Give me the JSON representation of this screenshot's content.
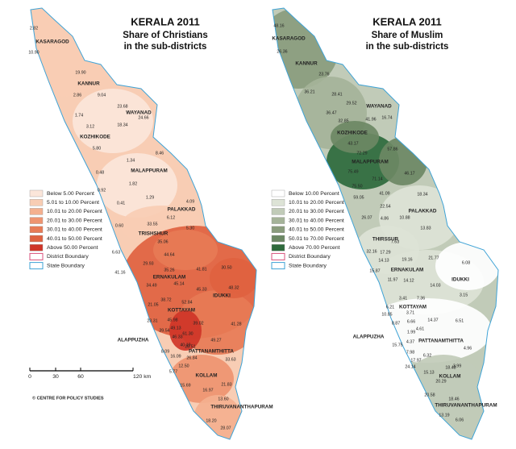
{
  "maps": [
    {
      "title": "KERALA 2011",
      "subtitle_lines": [
        "Share of Christians",
        "in the sub-districts"
      ],
      "legend": [
        {
          "label": "Below 5.00 Percent",
          "color": "#fbe6da"
        },
        {
          "label": "5.01 to 10.00 Percent",
          "color": "#f8cdb4"
        },
        {
          "label": "10.01 to 20.00 Percent",
          "color": "#f4b08f"
        },
        {
          "label": "20.01 to 30.00 Percent",
          "color": "#ee9470"
        },
        {
          "label": "30.01 to 40.00 Percent",
          "color": "#e77b56"
        },
        {
          "label": "40.01 to 50.00 Percent",
          "color": "#df6240"
        },
        {
          "label": "Above 50.00 Percent",
          "color": "#cf3528"
        }
      ],
      "boundaries": [
        {
          "label": "District Boundary",
          "color": "#d8507c"
        },
        {
          "label": "State Boundary",
          "color": "#3fa3d6"
        }
      ],
      "districts": [
        "KASARAGOD",
        "KANNUR",
        "WAYANAD",
        "KOZHIKODE",
        "MALAPPURAM",
        "PALAKKAD",
        "TRISHSHUR",
        "ERNAKULAM",
        "IDUKKI",
        "KOTTAYAM",
        "ALAPPUZHA",
        "PATTANAMTHITTA",
        "KOLLAM",
        "THIRUVANANTHAPURAM"
      ],
      "values": [
        "2.82",
        "10.90",
        "19.90",
        "2.86",
        "9.04",
        "23.68",
        "24.66",
        "1.74",
        "3.12",
        "18.34",
        "5.80",
        "8.46",
        "1.34",
        "0.48",
        "1.82",
        "0.92",
        "1.29",
        "4.09",
        "0.41",
        "6.12",
        "33.55",
        "0.60",
        "5.30",
        "35.06",
        "6.63",
        "44.64",
        "29.93",
        "41.16",
        "35.26",
        "41.81",
        "30.50",
        "45.14",
        "34.49",
        "45.33",
        "48.32",
        "38.72",
        "21.05",
        "52.84",
        "45.98",
        "23.31",
        "49.13",
        "39.02",
        "41.28",
        "39.54",
        "46.33",
        "61.30",
        "49.27",
        "40.19",
        "8.09",
        "28.51",
        "16.09",
        "26.84",
        "33.63",
        "12.50",
        "5.77",
        "15.69",
        "21.83",
        "16.97",
        "13.60",
        "18.20",
        "28.07"
      ]
    },
    {
      "title": "KERALA 2011",
      "subtitle_lines": [
        "Share of Muslim",
        "in the sub-districts"
      ],
      "legend": [
        {
          "label": "Below 10.00 Percent",
          "color": "#ffffff"
        },
        {
          "label": "10.01 to 20.00 Percent",
          "color": "#dde3d6"
        },
        {
          "label": "20.01 to 30.00 Percent",
          "color": "#c1cbb8"
        },
        {
          "label": "30.01 to 40.00 Percent",
          "color": "#a5b399"
        },
        {
          "label": "40.01 to 50.00 Percent",
          "color": "#8a9c7d"
        },
        {
          "label": "50.01 to 70.00 Percent",
          "color": "#6c8864"
        },
        {
          "label": "Above 70.00 Percent",
          "color": "#2e6a3c"
        }
      ],
      "boundaries": [
        {
          "label": "District Boundary",
          "color": "#d8507c"
        },
        {
          "label": "State Boundary",
          "color": "#3fa3d6"
        }
      ],
      "districts": [
        "KASARAGOD",
        "KANNUR",
        "WAYANAD",
        "KOZHIKODE",
        "MALAPPURAM",
        "PALAKKAD",
        "THIRSSUR",
        "ERNAKULAM",
        "IDUKKI",
        "KOTTAYAM",
        "ALAPPUZHA",
        "PATTANAMTHITTA",
        "KOLLAM",
        "THIRUVANANTHAPURAM"
      ],
      "values": [
        "48.16",
        "26.36",
        "23.76",
        "36.21",
        "28.41",
        "29.52",
        "36.47",
        "41.96",
        "16.74",
        "32.85",
        "43.17",
        "57.86",
        "72.29",
        "75.49",
        "71.14",
        "46.17",
        "75.50",
        "59.05",
        "41.09",
        "18.34",
        "22.54",
        "26.07",
        "4.86",
        "10.88",
        "13.83",
        "7.63",
        "32.16",
        "17.29",
        "14.13",
        "19.16",
        "21.77",
        "15.87",
        "11.97",
        "14.12",
        "14.03",
        "6.08",
        "3.41",
        "7.36",
        "3.15",
        "6.21",
        "10.85",
        "3.71",
        "8.87",
        "6.66",
        "14.37",
        "6.51",
        "4.61",
        "1.99",
        "15.75",
        "4.37",
        "7.98",
        "6.32",
        "4.96",
        "17.97",
        "3.99",
        "24.14",
        "15.13",
        "18.48",
        "20.29",
        "20.58",
        "18.46",
        "13.19",
        "6.06"
      ]
    }
  ],
  "scale": [
    "0",
    "30",
    "60",
    "120 km"
  ],
  "credit": "© CENTRE FOR POLICY STUDIES"
}
